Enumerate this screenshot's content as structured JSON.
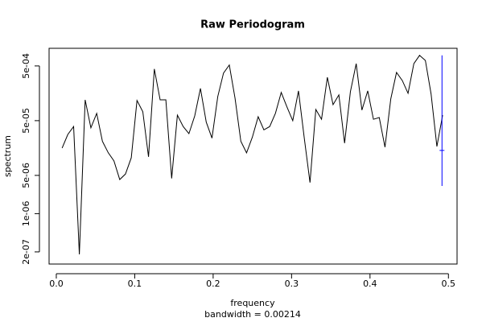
{
  "chart_data": {
    "type": "line",
    "title": "Raw Periodogram",
    "x_label": "frequency",
    "y_label": "spectrum",
    "subtitle": "bandwidth = 0.00214",
    "log_y": true,
    "x": [
      0.0074,
      0.0147,
      0.0221,
      0.0294,
      0.0368,
      0.0441,
      0.0515,
      0.0588,
      0.0662,
      0.0735,
      0.0809,
      0.0882,
      0.0956,
      0.1029,
      0.1103,
      0.1176,
      0.125,
      0.1324,
      0.1397,
      0.1471,
      0.1544,
      0.1618,
      0.1691,
      0.1765,
      0.1838,
      0.1912,
      0.1985,
      0.2059,
      0.2132,
      0.2206,
      0.2279,
      0.2353,
      0.2426,
      0.25,
      0.2574,
      0.2647,
      0.2721,
      0.2794,
      0.2868,
      0.2941,
      0.3015,
      0.3088,
      0.3162,
      0.3235,
      0.3309,
      0.3382,
      0.3456,
      0.3529,
      0.3603,
      0.3676,
      0.375,
      0.3824,
      0.3897,
      0.3971,
      0.4044,
      0.4118,
      0.4191,
      0.4265,
      0.4338,
      0.4412,
      0.4485,
      0.4559,
      0.4632,
      0.4706,
      0.4779,
      0.4853,
      0.4926
    ],
    "series": [
      {
        "color": "#000000",
        "values": [
          1.58e-05,
          2.8e-05,
          3.9e-05,
          1.8e-07,
          0.00012,
          3.7e-05,
          6.8e-05,
          2.1e-05,
          1.3e-05,
          9.2e-06,
          4.2e-06,
          5.3e-06,
          1.05e-05,
          0.000117,
          7.3e-05,
          1.09e-05,
          0.00044,
          0.00012,
          0.00012,
          4.4e-06,
          6.3e-05,
          3.9e-05,
          2.9e-05,
          6.1e-05,
          0.000194,
          4.7e-05,
          2.4e-05,
          0.000138,
          0.00037,
          0.00052,
          0.000129,
          2.1e-05,
          1.29e-05,
          2.5e-05,
          5.9e-05,
          3.4e-05,
          3.9e-05,
          6.8e-05,
          0.000164,
          8.9e-05,
          5e-05,
          0.000175,
          2.4e-05,
          3.7e-06,
          8e-05,
          5.3e-05,
          0.00031,
          9.8e-05,
          0.000148,
          1.94e-05,
          0.000169,
          0.00055,
          7.8e-05,
          0.000175,
          5.3e-05,
          5.7e-05,
          1.64e-05,
          0.000125,
          0.00038,
          0.00027,
          0.000158,
          0.00055,
          0.00078,
          0.00063,
          0.000153,
          1.69e-05,
          6.3e-05
        ]
      }
    ],
    "ci_bar": {
      "x": 0.4918,
      "lower": 3.2e-06,
      "center": 1.43e-05,
      "upper": 0.00078,
      "color": "#0000ff"
    },
    "xlim": [
      -0.0092,
      0.511
    ],
    "ylim": [
      1.2e-07,
      0.00105
    ],
    "xticks": [
      {
        "value": 0,
        "label": "0.0"
      },
      0.1,
      0.2,
      0.3,
      0.4,
      0.5
    ],
    "yticks": [
      {
        "value": 0.0005,
        "label": "5e-04"
      },
      {
        "value": 5e-05,
        "label": "5e-05"
      },
      {
        "value": 5e-06,
        "label": "5e-06"
      },
      {
        "value": 1e-06,
        "label": "1e-06"
      },
      {
        "value": 2e-07,
        "label": "2e-07"
      }
    ]
  }
}
